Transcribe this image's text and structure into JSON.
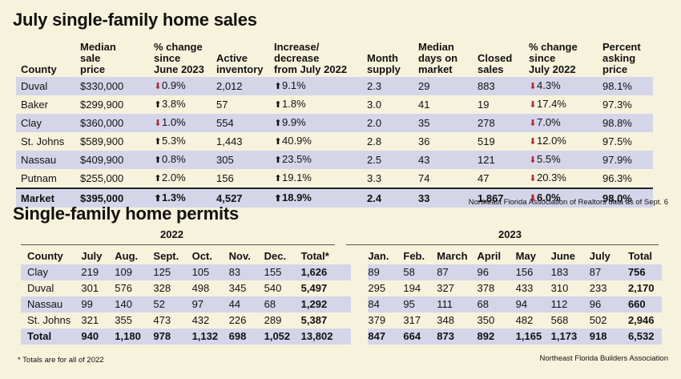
{
  "sales": {
    "title": "July single-family home sales",
    "headers": {
      "county": "County",
      "median_price": [
        "Median",
        "sale",
        "price"
      ],
      "change_june": [
        "% change",
        "since",
        "June 2023"
      ],
      "inventory": [
        "Active",
        "inventory"
      ],
      "change_july": [
        "Increase/",
        "decrease",
        "from July 2022"
      ],
      "supply": [
        "Month",
        "supply"
      ],
      "days": [
        "Median",
        "days on",
        "market"
      ],
      "closed": [
        "Closed",
        "sales"
      ],
      "change_july2022": [
        "% change",
        "since",
        "July 2022"
      ],
      "asking": [
        "Percent",
        "asking",
        "price"
      ]
    },
    "rows": [
      {
        "county": "Duval",
        "price": "$330,000",
        "d1": "down",
        "c1": "0.9%",
        "inv": "2,012",
        "d2": "up",
        "c2": "9.1%",
        "supply": "2.3",
        "days": "29",
        "closed": "883",
        "d3": "down",
        "c3": "4.3%",
        "asking": "98.1%"
      },
      {
        "county": "Baker",
        "price": "$299,900",
        "d1": "up",
        "c1": "3.8%",
        "inv": "57",
        "d2": "up",
        "c2": "1.8%",
        "supply": "3.0",
        "days": "41",
        "closed": "19",
        "d3": "down",
        "c3": "17.4%",
        "asking": "97.3%"
      },
      {
        "county": "Clay",
        "price": "$360,000",
        "d1": "down",
        "c1": "1.0%",
        "inv": "554",
        "d2": "up",
        "c2": "9.9%",
        "supply": "2.0",
        "days": "35",
        "closed": "278",
        "d3": "down",
        "c3": "7.0%",
        "asking": "98.8%"
      },
      {
        "county": "St. Johns",
        "price": "$589,900",
        "d1": "up",
        "c1": "5.3%",
        "inv": "1,443",
        "d2": "up",
        "c2": "40.9%",
        "supply": "2.8",
        "days": "36",
        "closed": "519",
        "d3": "down",
        "c3": "12.0%",
        "asking": "97.5%"
      },
      {
        "county": "Nassau",
        "price": "$409,900",
        "d1": "up",
        "c1": "0.8%",
        "inv": "305",
        "d2": "up",
        "c2": "23.5%",
        "supply": "2.5",
        "days": "43",
        "closed": "121",
        "d3": "down",
        "c3": "5.5%",
        "asking": "97.9%"
      },
      {
        "county": "Putnam",
        "price": "$255,000",
        "d1": "up",
        "c1": "2.0%",
        "inv": "156",
        "d2": "up",
        "c2": "19.1%",
        "supply": "3.3",
        "days": "74",
        "closed": "47",
        "d3": "down",
        "c3": "20.3%",
        "asking": "96.3%"
      }
    ],
    "market": {
      "county": "Market",
      "price": "$395,000",
      "d1": "up",
      "c1": "1.3%",
      "inv": "4,527",
      "d2": "up",
      "c2": "18.9%",
      "supply": "2.4",
      "days": "33",
      "closed": "1,867",
      "d3": "down",
      "c3": "6.0%",
      "asking": "98.0%"
    },
    "source": "Northeast Florida Association of Realtors data as of Sept. 6"
  },
  "permits": {
    "title": "Single-family home permits",
    "year_a": "2022",
    "year_b": "2023",
    "headers": [
      "County",
      "July",
      "Aug.",
      "Sept.",
      "Oct.",
      "Nov.",
      "Dec.",
      "Total*",
      "Jan.",
      "Feb.",
      "March",
      "April",
      "May",
      "June",
      "July",
      "Total"
    ],
    "rows": [
      [
        "Clay",
        "219",
        "109",
        "125",
        "105",
        "83",
        "155",
        "1,626",
        "89",
        "58",
        "87",
        "96",
        "156",
        "183",
        "87",
        "756"
      ],
      [
        "Duval",
        "301",
        "576",
        "328",
        "498",
        "345",
        "540",
        "5,497",
        "295",
        "194",
        "327",
        "378",
        "433",
        "310",
        "233",
        "2,170"
      ],
      [
        "Nassau",
        "99",
        "140",
        "52",
        "97",
        "44",
        "68",
        "1,292",
        "84",
        "95",
        "111",
        "68",
        "94",
        "112",
        "96",
        "660"
      ],
      [
        "St. Johns",
        "321",
        "355",
        "473",
        "432",
        "226",
        "289",
        "5,387",
        "379",
        "317",
        "348",
        "350",
        "482",
        "568",
        "502",
        "2,946"
      ],
      [
        "Total",
        "940",
        "1,180",
        "978",
        "1,132",
        "698",
        "1,052",
        "13,802",
        "847",
        "664",
        "873",
        "892",
        "1,165",
        "1,173",
        "918",
        "6,532"
      ]
    ],
    "footnote": "* Totals are for all of 2022",
    "source": "Northeast Florida Builders Association"
  },
  "colors": {
    "background": "#f7f2dc",
    "row_shade": "#d5d5ea",
    "down_arrow": "#b8242f",
    "up_arrow": "#111111"
  }
}
